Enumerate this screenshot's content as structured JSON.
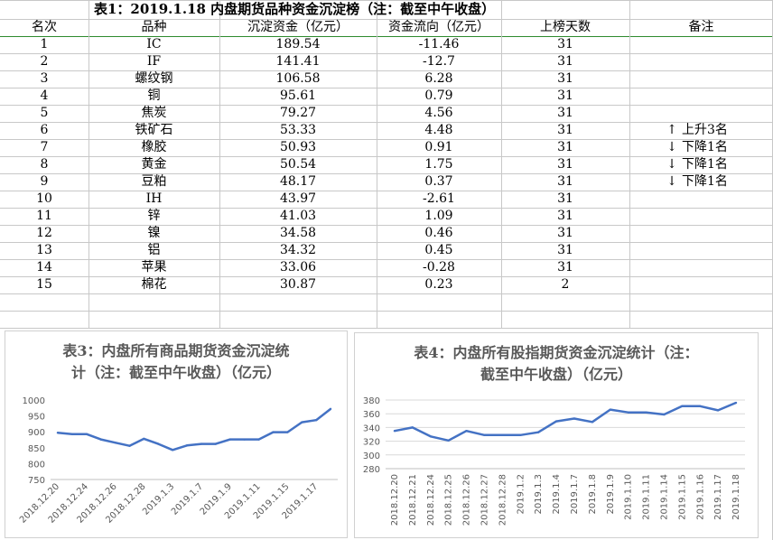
{
  "table": {
    "title": "表1：2019.1.18 内盘期货品种资金沉淀榜（注：截至中午收盘）",
    "headers": [
      "名次",
      "品种",
      "沉淀资金（亿元）",
      "资金流向（亿元）",
      "上榜天数",
      "备注"
    ],
    "rows": [
      {
        "rank": "1",
        "name": "IC",
        "capital": "189.54",
        "flow": "-11.46",
        "days": "31",
        "note": ""
      },
      {
        "rank": "2",
        "name": "IF",
        "capital": "141.41",
        "flow": "-12.7",
        "days": "31",
        "note": ""
      },
      {
        "rank": "3",
        "name": "螺纹钢",
        "capital": "106.58",
        "flow": "6.28",
        "days": "31",
        "note": ""
      },
      {
        "rank": "4",
        "name": "铜",
        "capital": "95.61",
        "flow": "0.79",
        "days": "31",
        "note": ""
      },
      {
        "rank": "5",
        "name": "焦炭",
        "capital": "79.27",
        "flow": "4.56",
        "days": "31",
        "note": ""
      },
      {
        "rank": "6",
        "name": "铁矿石",
        "capital": "53.33",
        "flow": "4.48",
        "days": "31",
        "note": "上升3名",
        "arrow": "up"
      },
      {
        "rank": "7",
        "name": "橡胶",
        "capital": "50.93",
        "flow": "0.91",
        "days": "31",
        "note": "下降1名",
        "arrow": "down"
      },
      {
        "rank": "8",
        "name": "黄金",
        "capital": "50.54",
        "flow": "1.75",
        "days": "31",
        "note": "下降1名",
        "arrow": "down"
      },
      {
        "rank": "9",
        "name": "豆粕",
        "capital": "48.17",
        "flow": "0.37",
        "days": "31",
        "note": "下降1名",
        "arrow": "down"
      },
      {
        "rank": "10",
        "name": "IH",
        "capital": "43.97",
        "flow": "-2.61",
        "days": "31",
        "note": ""
      },
      {
        "rank": "11",
        "name": "锌",
        "capital": "41.03",
        "flow": "1.09",
        "days": "31",
        "note": ""
      },
      {
        "rank": "12",
        "name": "镍",
        "capital": "34.58",
        "flow": "0.46",
        "days": "31",
        "note": ""
      },
      {
        "rank": "13",
        "name": "铝",
        "capital": "34.32",
        "flow": "0.45",
        "days": "31",
        "note": ""
      },
      {
        "rank": "14",
        "name": "苹果",
        "capital": "33.06",
        "flow": "-0.28",
        "days": "31",
        "note": ""
      },
      {
        "rank": "15",
        "name": "棉花",
        "capital": "30.87",
        "flow": "0.23",
        "days": "2",
        "note": ""
      }
    ]
  },
  "chart_data": [
    {
      "type": "line",
      "title": "表3：内盘所有商品期货资金沉淀统计（注：截至中午收盘）（亿元）",
      "title_lines": [
        "表3：内盘所有商品期货资金沉淀统",
        "计（注：截至中午收盘）（亿元）"
      ],
      "x_tick_labels": [
        "2018.12.20",
        "2018.12.24",
        "2018.12.26",
        "2018.12.28",
        "2019.1.3",
        "2019.1.7",
        "2019.1.9",
        "2019.1.11",
        "2019.1.15",
        "2019.1.17"
      ],
      "x_count": 20,
      "y": [
        897,
        893,
        893,
        876,
        866,
        856,
        878,
        862,
        843,
        857,
        862,
        862,
        876,
        876,
        876,
        899,
        899,
        930,
        937,
        972
      ],
      "ylim": [
        750,
        1000
      ],
      "yticks": [
        750,
        800,
        850,
        900,
        950,
        1000
      ],
      "line_color": "#4472c4",
      "grid": false
    },
    {
      "type": "line",
      "title": "表4：内盘所有股指期货资金沉淀统计（注：截至中午收盘）（亿元）",
      "title_lines": [
        "表4：内盘所有股指期货资金沉淀统计（注：",
        "截至中午收盘）（亿元）"
      ],
      "x_tick_labels": [
        "2018.12.20",
        "2018.12.21",
        "2018.12.24",
        "2018.12.25",
        "2018.12.26",
        "2018.12.27",
        "2018.12.28",
        "2019.1.2",
        "2019.1.3",
        "2019.1.4",
        "2019.1.7",
        "2019.1.8",
        "2019.1.9",
        "2019.1.10",
        "2019.1.11",
        "2019.1.14",
        "2019.1.15",
        "2019.1.16",
        "2019.1.17",
        "2019.1.18"
      ],
      "x_count": 20,
      "y": [
        335,
        340,
        327,
        321,
        335,
        329,
        329,
        329,
        333,
        349,
        353,
        348,
        366,
        362,
        362,
        359,
        371,
        371,
        365,
        376
      ],
      "ylim": [
        280,
        380
      ],
      "yticks": [
        280,
        300,
        320,
        340,
        360,
        380
      ],
      "line_color": "#4472c4",
      "grid": true
    }
  ]
}
